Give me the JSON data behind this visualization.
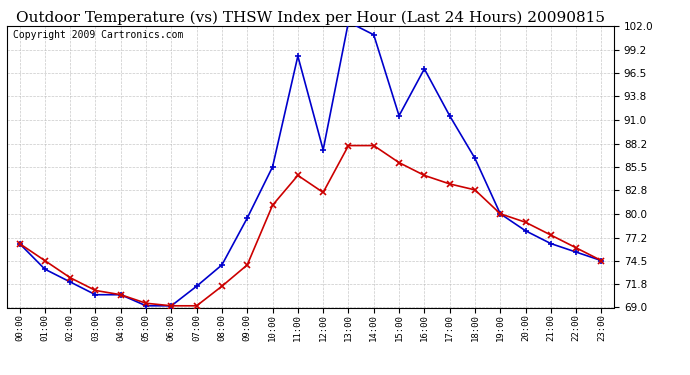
{
  "title": "Outdoor Temperature (vs) THSW Index per Hour (Last 24 Hours) 20090815",
  "copyright": "Copyright 2009 Cartronics.com",
  "hours": [
    "00:00",
    "01:00",
    "02:00",
    "03:00",
    "04:00",
    "05:00",
    "06:00",
    "07:00",
    "08:00",
    "09:00",
    "10:00",
    "11:00",
    "12:00",
    "13:00",
    "14:00",
    "15:00",
    "16:00",
    "17:00",
    "18:00",
    "19:00",
    "20:00",
    "21:00",
    "22:00",
    "23:00"
  ],
  "temp_red": [
    76.5,
    74.5,
    72.5,
    71.0,
    70.5,
    69.5,
    69.2,
    69.2,
    71.5,
    74.0,
    81.0,
    84.5,
    82.5,
    88.0,
    88.0,
    86.0,
    84.5,
    83.5,
    82.8,
    80.0,
    79.0,
    77.5,
    76.0,
    74.5
  ],
  "thsw_blue": [
    76.5,
    73.5,
    72.0,
    70.5,
    70.5,
    69.2,
    69.2,
    71.5,
    74.0,
    79.5,
    85.5,
    98.5,
    87.5,
    102.5,
    101.0,
    91.5,
    97.0,
    91.5,
    86.5,
    80.0,
    78.0,
    76.5,
    75.5,
    74.5
  ],
  "ylim": [
    69.0,
    102.0
  ],
  "yticks": [
    69.0,
    71.8,
    74.5,
    77.2,
    80.0,
    82.8,
    85.5,
    88.2,
    91.0,
    93.8,
    96.5,
    99.2,
    102.0
  ],
  "bg_color": "#ffffff",
  "plot_bg": "#ffffff",
  "grid_color": "#bbbbbb",
  "blue_color": "#0000cc",
  "red_color": "#cc0000",
  "title_fontsize": 11,
  "copyright_fontsize": 7
}
